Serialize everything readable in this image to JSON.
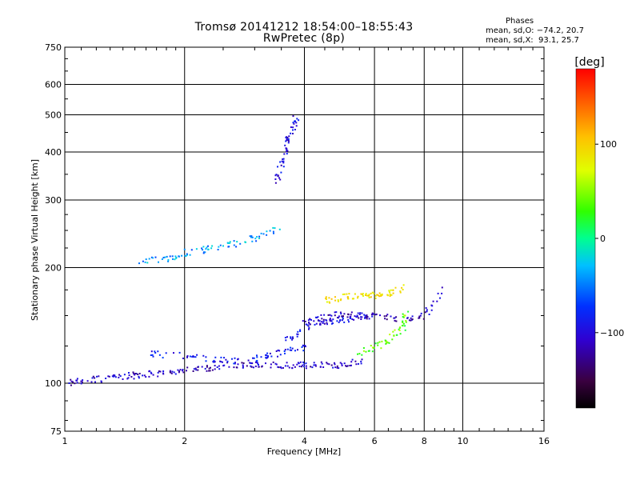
{
  "header": {
    "title_line1": "Tromsø 20141212 18:54:00–18:55:43",
    "title_line2": "RwPretec (8p)",
    "stats_heading": "Phases",
    "stats_o": "mean, sd,O: −74.2, 20.7",
    "stats_x": "mean, sd,X:  93.1, 25.7"
  },
  "colorbar": {
    "label": "[deg]",
    "ticks": [
      {
        "label": "100",
        "value": 100
      },
      {
        "label": "0",
        "value": 0
      },
      {
        "label": "−100",
        "value": -100
      }
    ],
    "range": [
      -180,
      180
    ]
  },
  "chart_data": {
    "type": "scatter",
    "title": "Tromsø 20141212 18:54:00–18:55:43",
    "subtitle": "RwPretec (8p)",
    "xlabel": "Frequency [MHz]",
    "ylabel": "Stationary phase Virtual Height [km]",
    "xscale": "log",
    "yscale": "log",
    "xlim": [
      1,
      16
    ],
    "ylim": [
      75,
      750
    ],
    "grid": true,
    "x_ticks": [
      1,
      2,
      4,
      6,
      8,
      10,
      16
    ],
    "x_tick_labels": [
      "1",
      "2",
      "4",
      "6",
      "8",
      "10",
      "16"
    ],
    "y_ticks": [
      75,
      100,
      200,
      300,
      400,
      500,
      600,
      750
    ],
    "y_tick_labels": [
      "75",
      "100",
      "200",
      "300",
      "400",
      "500",
      "600",
      "750"
    ],
    "color_quantity": "phase [deg]",
    "clusters": [
      {
        "region": "low trace",
        "phase": -110,
        "x": [
          1.0,
          1.1,
          1.3,
          1.45,
          1.6,
          1.8,
          2.0,
          2.3,
          2.6,
          2.9,
          3.2,
          3.6,
          4.0,
          4.5,
          5.0,
          5.5
        ],
        "y": [
          100,
          102,
          104,
          105,
          106,
          107,
          108,
          110,
          112,
          112,
          112,
          112,
          112,
          112,
          112,
          115
        ]
      },
      {
        "region": "low trace upper band",
        "phase": -90,
        "x": [
          1.6,
          2.0,
          2.4,
          2.8,
          3.2,
          3.6,
          4.0
        ],
        "y": [
          120,
          118,
          116,
          114,
          118,
          122,
          125
        ]
      },
      {
        "region": "E/F1 traces near 4-5 MHz",
        "phase": -100,
        "x": [
          3.6,
          4.0,
          4.3,
          4.6,
          5.0,
          5.5,
          6.0
        ],
        "y": [
          130,
          140,
          145,
          146,
          147,
          150,
          150
        ]
      },
      {
        "region": "O mode 4.5-7 MHz",
        "phase": 90,
        "x": [
          4.5,
          5.0,
          5.5,
          6.0,
          6.5,
          7.0
        ],
        "y": [
          165,
          168,
          170,
          170,
          172,
          178
        ]
      },
      {
        "region": "X mode 5-7 MHz",
        "phase": 40,
        "x": [
          5.5,
          6.0,
          6.5,
          7.0,
          7.2
        ],
        "y": [
          120,
          125,
          130,
          140,
          155
        ]
      },
      {
        "region": "spread 3.5-4 MHz",
        "phase": -100,
        "x": [
          3.4,
          3.5,
          3.6,
          3.7,
          3.8
        ],
        "y": [
          340,
          380,
          420,
          460,
          500
        ]
      },
      {
        "region": "trace 1.5-3.5 MHz",
        "phase": -40,
        "x": [
          1.5,
          1.8,
          2.0,
          2.3,
          2.6,
          3.0,
          3.5
        ],
        "y": [
          208,
          212,
          220,
          225,
          230,
          240,
          255
        ]
      },
      {
        "region": "F trace 4-9 MHz",
        "phase": -115,
        "x": [
          4.0,
          4.5,
          5.0,
          6.0,
          7.0,
          8.0,
          9.0
        ],
        "y": [
          145,
          150,
          152,
          150,
          148,
          150,
          180
        ]
      }
    ]
  }
}
